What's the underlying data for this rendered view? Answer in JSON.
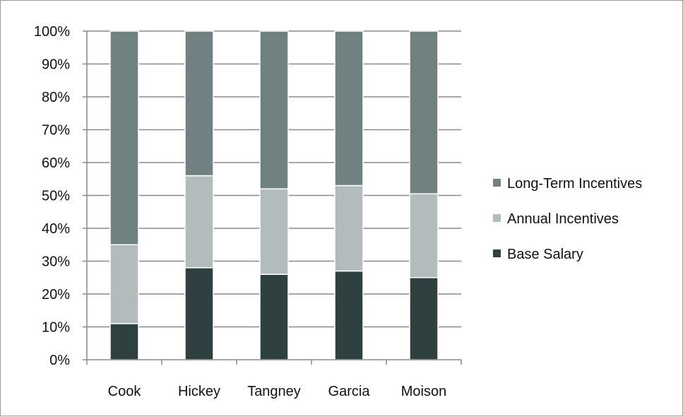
{
  "chart_data": {
    "type": "bar",
    "stacked": true,
    "percent_stacked": true,
    "categories": [
      "Cook",
      "Hickey",
      "Tangney",
      "Garcia",
      "Moison"
    ],
    "series": [
      {
        "name": "Base Salary",
        "values": [
          11,
          28,
          26,
          27,
          25
        ],
        "color": "#2f4040"
      },
      {
        "name": "Annual Incentives",
        "values": [
          24,
          28,
          26,
          26,
          25.5
        ],
        "color": "#b3bcbc"
      },
      {
        "name": "Long-Term Incentives",
        "values": [
          65,
          44,
          48,
          47,
          49.5
        ],
        "color": "#6f8181"
      }
    ],
    "ylim": [
      0,
      100
    ],
    "yticks": [
      "0%",
      "10%",
      "20%",
      "30%",
      "40%",
      "50%",
      "60%",
      "70%",
      "80%",
      "90%",
      "100%"
    ],
    "grid": true,
    "legend_position": "right",
    "legend_order": [
      "Long-Term Incentives",
      "Annual Incentives",
      "Base Salary"
    ],
    "title": "",
    "xlabel": "",
    "ylabel": ""
  }
}
